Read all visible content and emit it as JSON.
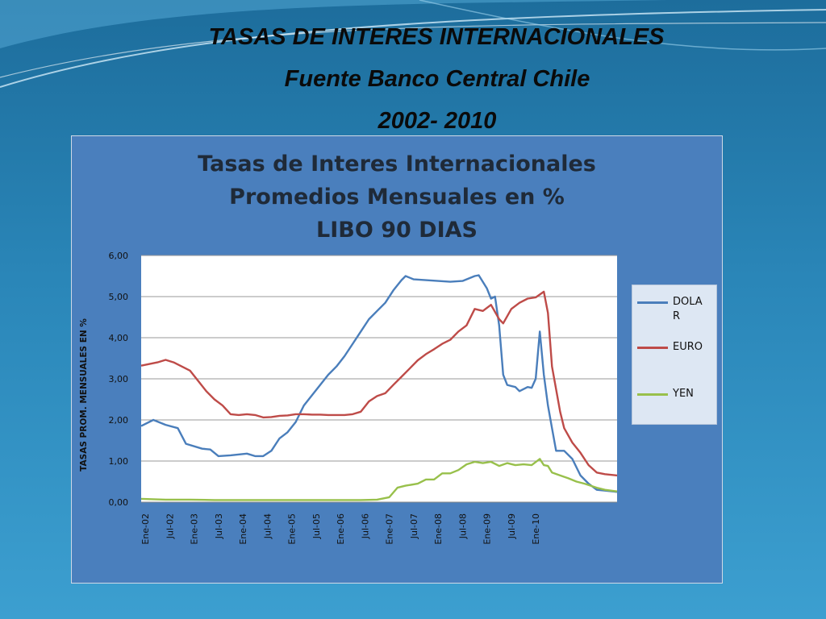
{
  "header": {
    "title": "TASAS DE INTERES INTERNACIONALES",
    "source": "Fuente Banco Central Chile",
    "period": "2002- 2010"
  },
  "colors": {
    "dolar": "#4a7ebb",
    "euro": "#be4b48",
    "yen": "#98c04b",
    "plot_bg": "#ffffff",
    "frame_bg": "#4a7fbd"
  },
  "chart_data": {
    "type": "line",
    "title": [
      "Tasas de Interes Internacionales",
      "Promedios Mensuales en %",
      "LIBO 90 DIAS"
    ],
    "ylabel": "TASAS PROM. MENSUALES EN %",
    "xlabel": "",
    "ylim": [
      0,
      6
    ],
    "yticks": [
      "0,00",
      "1,00",
      "2,00",
      "3,00",
      "4,00",
      "5,00",
      "6,00"
    ],
    "xticks": [
      "Ene-02",
      "Jul-02",
      "Ene-03",
      "Jul-03",
      "Ene-04",
      "Jul-04",
      "Ene-05",
      "Jul-05",
      "Ene-06",
      "Jul-06",
      "Ene-07",
      "Jul-07",
      "Ene-08",
      "Jul-08",
      "Ene-09",
      "Jul-09",
      "Ene-10"
    ],
    "grid": true,
    "legend_position": "right",
    "series": [
      {
        "name": "DOLAR",
        "display_name": "DOLA R",
        "color": "#4a7ebb",
        "points": [
          [
            0,
            1.85
          ],
          [
            3,
            2.0
          ],
          [
            6,
            1.88
          ],
          [
            9,
            1.8
          ],
          [
            11,
            1.42
          ],
          [
            15,
            1.3
          ],
          [
            17,
            1.28
          ],
          [
            19,
            1.12
          ],
          [
            22,
            1.14
          ],
          [
            26,
            1.18
          ],
          [
            28,
            1.12
          ],
          [
            30,
            1.12
          ],
          [
            32,
            1.25
          ],
          [
            34,
            1.55
          ],
          [
            36,
            1.7
          ],
          [
            38,
            1.95
          ],
          [
            40,
            2.35
          ],
          [
            42,
            2.6
          ],
          [
            44,
            2.85
          ],
          [
            46,
            3.1
          ],
          [
            48,
            3.3
          ],
          [
            50,
            3.55
          ],
          [
            52,
            3.85
          ],
          [
            54,
            4.15
          ],
          [
            56,
            4.45
          ],
          [
            58,
            4.65
          ],
          [
            60,
            4.85
          ],
          [
            62,
            5.15
          ],
          [
            64,
            5.4
          ],
          [
            65,
            5.5
          ],
          [
            67,
            5.42
          ],
          [
            70,
            5.4
          ],
          [
            73,
            5.38
          ],
          [
            76,
            5.36
          ],
          [
            79,
            5.38
          ],
          [
            82,
            5.5
          ],
          [
            83,
            5.52
          ],
          [
            85,
            5.2
          ],
          [
            86,
            4.95
          ],
          [
            87,
            5.0
          ],
          [
            88,
            4.3
          ],
          [
            89,
            3.1
          ],
          [
            90,
            2.85
          ],
          [
            92,
            2.8
          ],
          [
            93,
            2.7
          ],
          [
            95,
            2.8
          ],
          [
            96,
            2.78
          ],
          [
            97,
            3.0
          ],
          [
            98,
            4.15
          ],
          [
            99,
            3.1
          ],
          [
            100,
            2.35
          ],
          [
            101,
            1.8
          ],
          [
            102,
            1.25
          ],
          [
            104,
            1.25
          ],
          [
            106,
            1.05
          ],
          [
            108,
            0.65
          ],
          [
            110,
            0.45
          ],
          [
            112,
            0.3
          ],
          [
            114,
            0.28
          ],
          [
            117,
            0.25
          ]
        ]
      },
      {
        "name": "EURO",
        "color": "#be4b48",
        "points": [
          [
            0,
            3.32
          ],
          [
            4,
            3.4
          ],
          [
            6,
            3.46
          ],
          [
            8,
            3.4
          ],
          [
            10,
            3.3
          ],
          [
            12,
            3.2
          ],
          [
            14,
            2.95
          ],
          [
            16,
            2.7
          ],
          [
            18,
            2.5
          ],
          [
            20,
            2.35
          ],
          [
            22,
            2.14
          ],
          [
            24,
            2.12
          ],
          [
            26,
            2.14
          ],
          [
            28,
            2.12
          ],
          [
            30,
            2.06
          ],
          [
            32,
            2.07
          ],
          [
            34,
            2.1
          ],
          [
            36,
            2.11
          ],
          [
            38,
            2.14
          ],
          [
            40,
            2.14
          ],
          [
            42,
            2.13
          ],
          [
            44,
            2.13
          ],
          [
            46,
            2.12
          ],
          [
            48,
            2.12
          ],
          [
            50,
            2.12
          ],
          [
            52,
            2.14
          ],
          [
            54,
            2.2
          ],
          [
            56,
            2.45
          ],
          [
            58,
            2.58
          ],
          [
            60,
            2.65
          ],
          [
            62,
            2.85
          ],
          [
            64,
            3.05
          ],
          [
            66,
            3.25
          ],
          [
            68,
            3.45
          ],
          [
            70,
            3.6
          ],
          [
            72,
            3.72
          ],
          [
            74,
            3.85
          ],
          [
            76,
            3.95
          ],
          [
            78,
            4.15
          ],
          [
            80,
            4.3
          ],
          [
            82,
            4.7
          ],
          [
            84,
            4.65
          ],
          [
            86,
            4.8
          ],
          [
            88,
            4.45
          ],
          [
            89,
            4.35
          ],
          [
            91,
            4.7
          ],
          [
            93,
            4.85
          ],
          [
            95,
            4.95
          ],
          [
            97,
            4.98
          ],
          [
            99,
            5.12
          ],
          [
            100,
            4.6
          ],
          [
            101,
            3.3
          ],
          [
            103,
            2.2
          ],
          [
            104,
            1.8
          ],
          [
            106,
            1.45
          ],
          [
            108,
            1.2
          ],
          [
            110,
            0.9
          ],
          [
            112,
            0.72
          ],
          [
            114,
            0.68
          ],
          [
            117,
            0.65
          ]
        ]
      },
      {
        "name": "YEN",
        "color": "#98c04b",
        "points": [
          [
            0,
            0.08
          ],
          [
            3,
            0.07
          ],
          [
            6,
            0.06
          ],
          [
            12,
            0.06
          ],
          [
            18,
            0.05
          ],
          [
            24,
            0.05
          ],
          [
            30,
            0.05
          ],
          [
            36,
            0.05
          ],
          [
            42,
            0.05
          ],
          [
            48,
            0.05
          ],
          [
            54,
            0.05
          ],
          [
            58,
            0.06
          ],
          [
            61,
            0.12
          ],
          [
            63,
            0.35
          ],
          [
            65,
            0.4
          ],
          [
            68,
            0.45
          ],
          [
            70,
            0.55
          ],
          [
            72,
            0.55
          ],
          [
            74,
            0.7
          ],
          [
            76,
            0.7
          ],
          [
            78,
            0.78
          ],
          [
            80,
            0.92
          ],
          [
            82,
            0.98
          ],
          [
            84,
            0.95
          ],
          [
            86,
            0.98
          ],
          [
            88,
            0.88
          ],
          [
            90,
            0.95
          ],
          [
            92,
            0.9
          ],
          [
            94,
            0.92
          ],
          [
            96,
            0.9
          ],
          [
            98,
            1.05
          ],
          [
            99,
            0.9
          ],
          [
            100,
            0.88
          ],
          [
            101,
            0.72
          ],
          [
            103,
            0.65
          ],
          [
            105,
            0.58
          ],
          [
            107,
            0.5
          ],
          [
            109,
            0.45
          ],
          [
            112,
            0.35
          ],
          [
            114,
            0.3
          ],
          [
            117,
            0.26
          ]
        ]
      }
    ]
  }
}
